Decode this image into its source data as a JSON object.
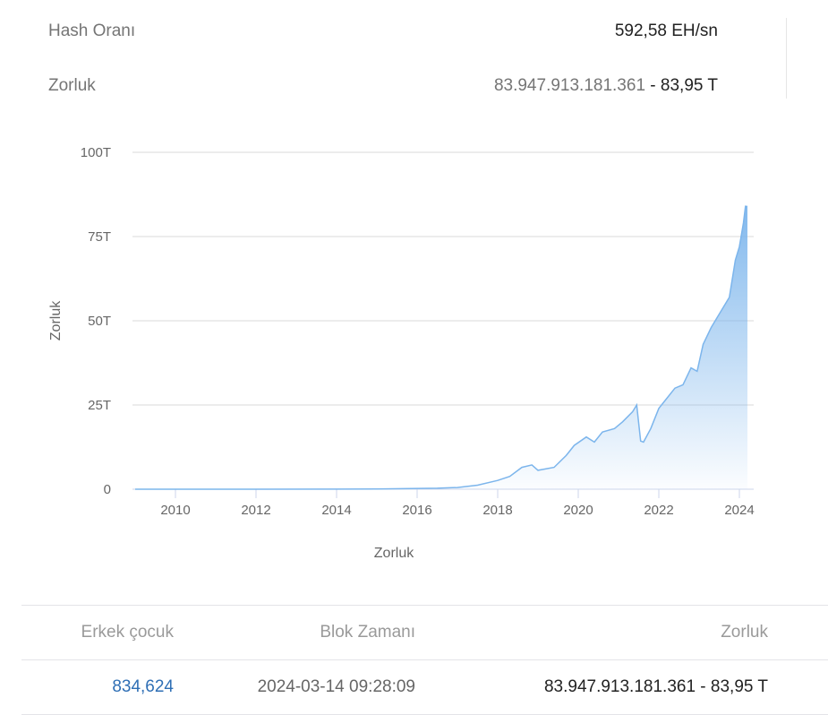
{
  "stats": [
    {
      "label": "Hash Oranı",
      "value": "592,58 EH/sn"
    },
    {
      "label": "Zorluk",
      "value": "83.947.913.181.361",
      "value_suffix": " - 83,95 T"
    }
  ],
  "chart_data": {
    "type": "area",
    "title": "",
    "xlabel": "Zorluk",
    "ylabel": "Zorluk",
    "xlim": [
      2009,
      2024.3
    ],
    "ylim": [
      0,
      100
    ],
    "yticks": [
      {
        "v": 0,
        "label": "0"
      },
      {
        "v": 25,
        "label": "25T"
      },
      {
        "v": 50,
        "label": "50T"
      },
      {
        "v": 75,
        "label": "75T"
      },
      {
        "v": 100,
        "label": "100T"
      }
    ],
    "xticks": [
      2010,
      2012,
      2014,
      2016,
      2018,
      2020,
      2022,
      2024
    ],
    "grid": true,
    "line_color": "#7cb5ec",
    "x": [
      2009,
      2012,
      2015,
      2016.5,
      2017,
      2017.5,
      2018,
      2018.3,
      2018.6,
      2018.85,
      2019,
      2019.4,
      2019.7,
      2019.9,
      2020.2,
      2020.4,
      2020.6,
      2020.9,
      2021.1,
      2021.35,
      2021.45,
      2021.55,
      2021.62,
      2021.8,
      2022,
      2022.2,
      2022.4,
      2022.6,
      2022.8,
      2022.95,
      2023.1,
      2023.3,
      2023.5,
      2023.75,
      2023.9,
      2024,
      2024.1,
      2024.15,
      2024.2
    ],
    "y": [
      0,
      0,
      0.05,
      0.3,
      0.5,
      1.2,
      2.6,
      3.8,
      6.5,
      7.2,
      5.6,
      6.5,
      10,
      13,
      15.5,
      14,
      17,
      18,
      20,
      23,
      25,
      14.3,
      14,
      18,
      24,
      27,
      30,
      31,
      36,
      35,
      43,
      48,
      52,
      57,
      68,
      72,
      79,
      84,
      83.9
    ]
  },
  "table": {
    "headers": [
      "Erkek çocuk",
      "Blok Zamanı",
      "Zorluk"
    ],
    "rows": [
      [
        "834,624",
        "2024-03-14 09:28:09",
        "83.947.913.181.361 - 83,95 T"
      ]
    ]
  },
  "colors": {
    "link": "#2f6fb5"
  }
}
